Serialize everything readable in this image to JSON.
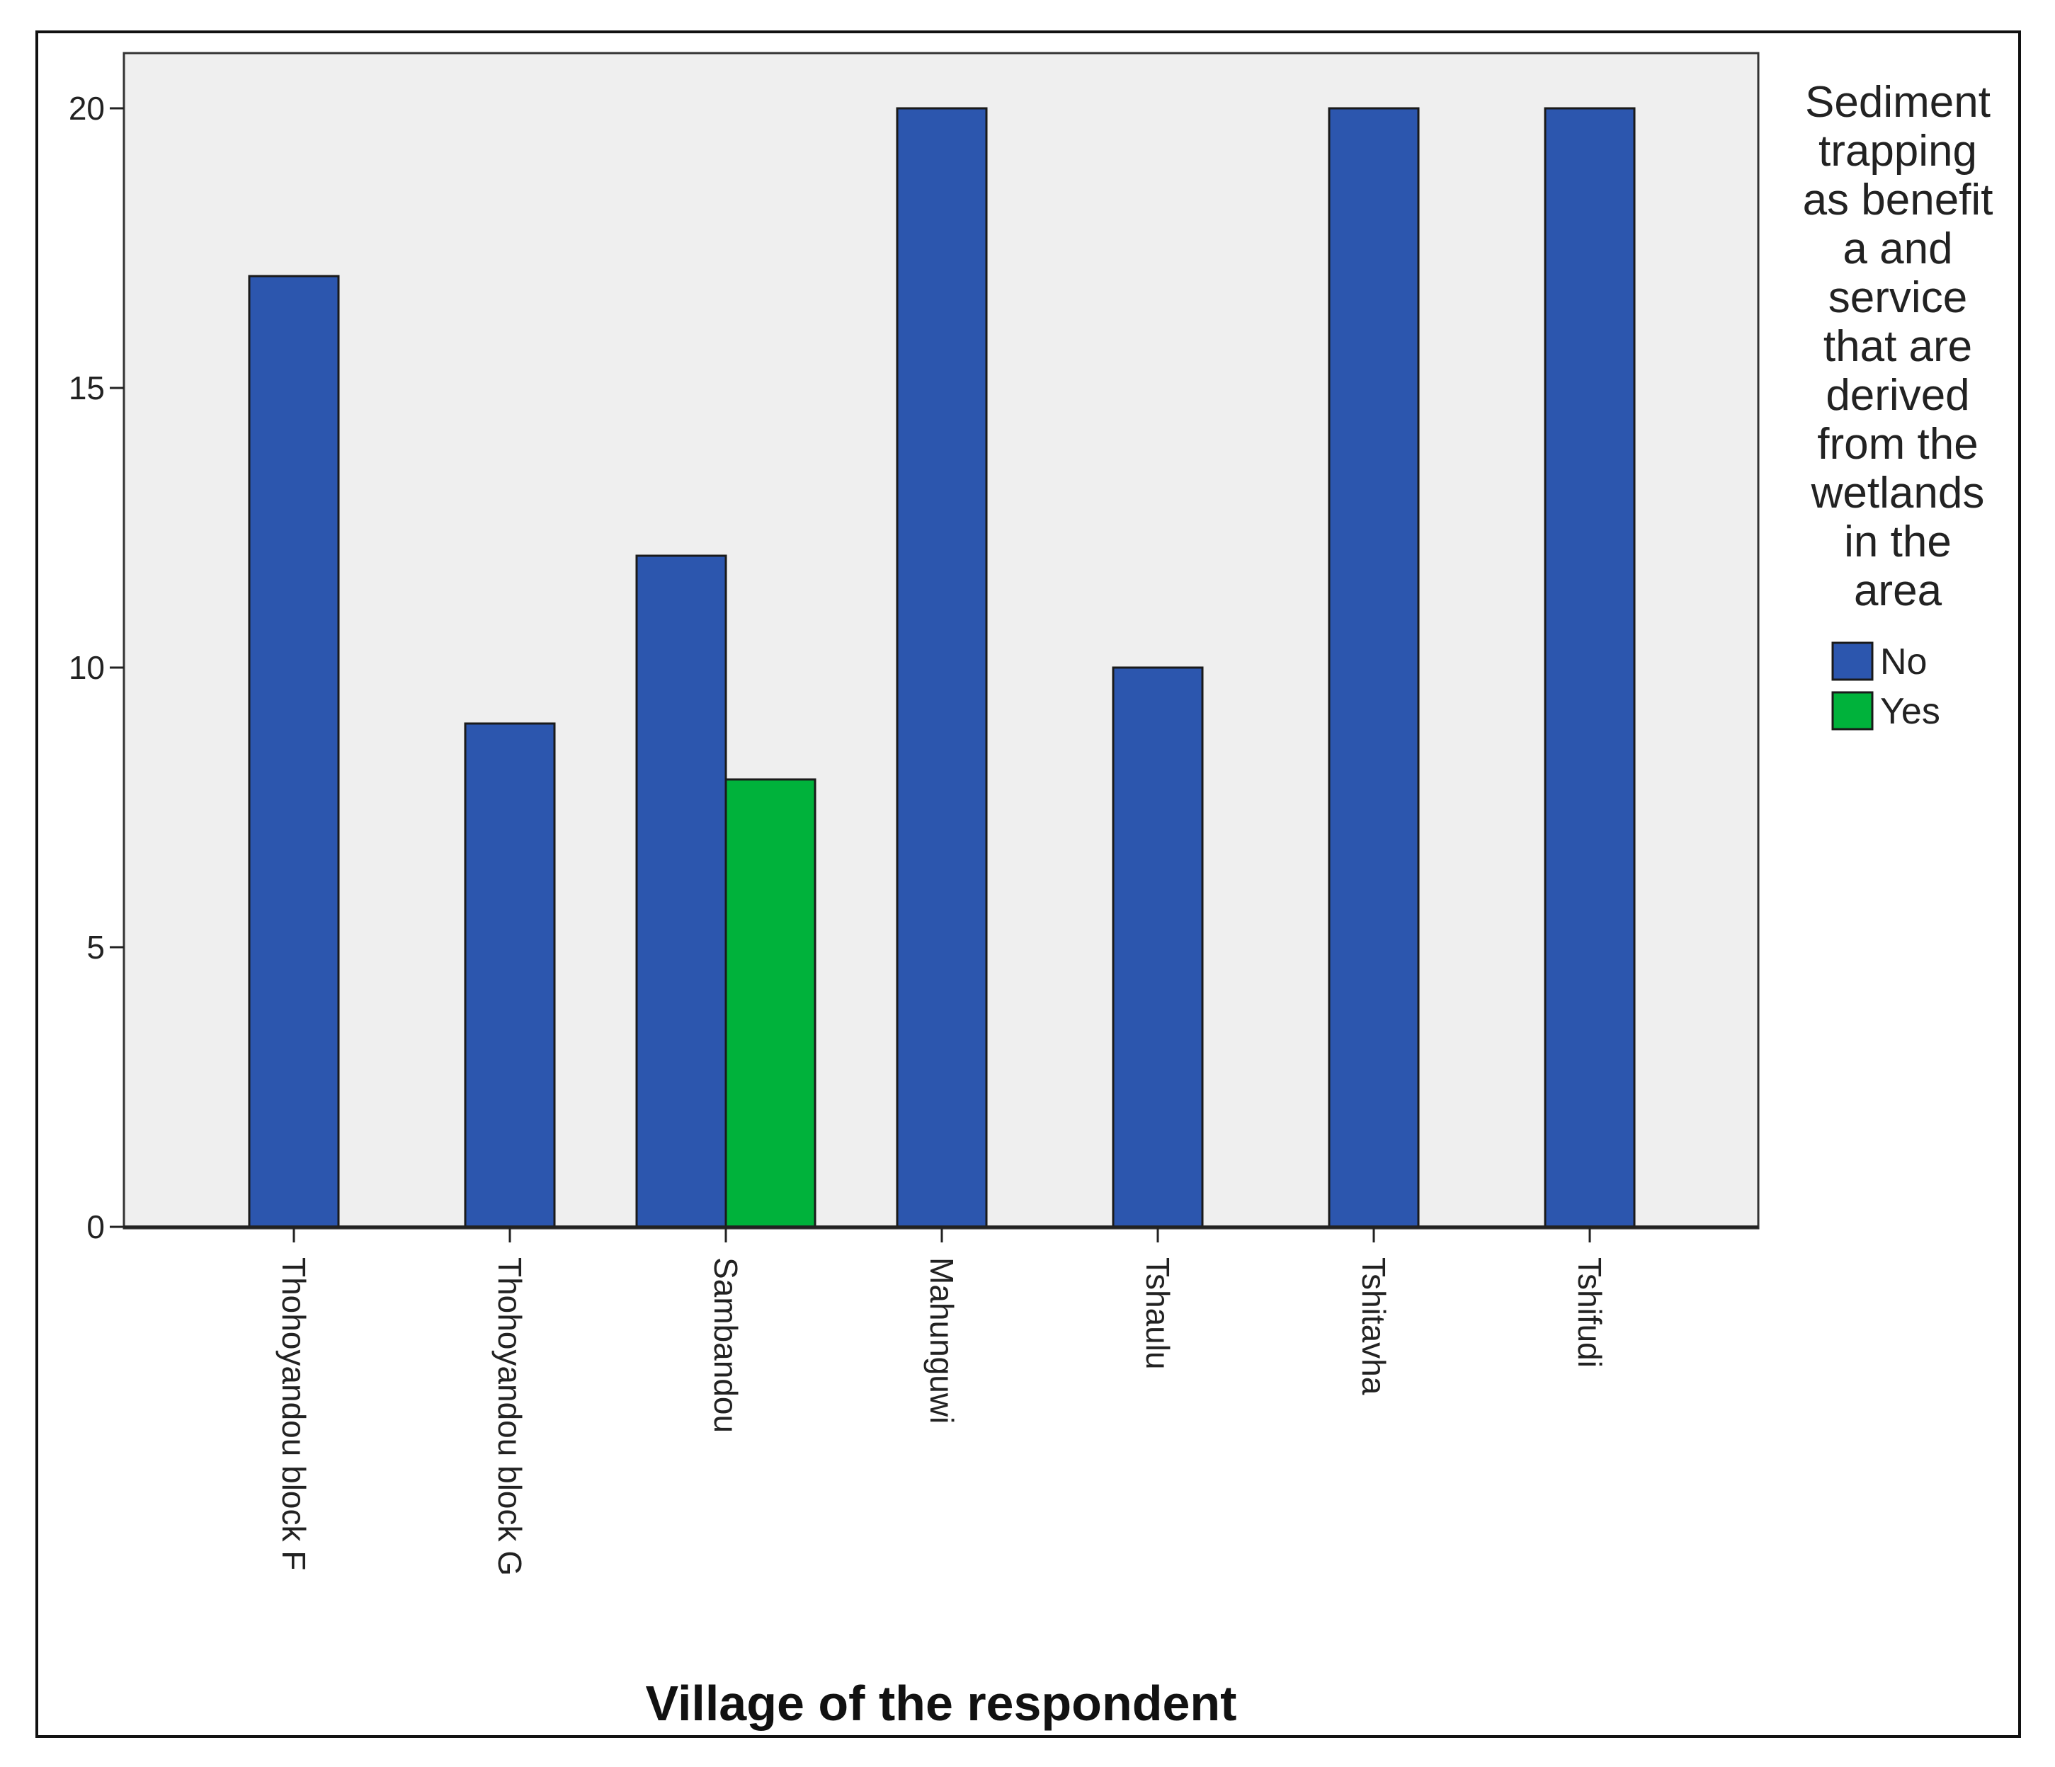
{
  "chart_data": {
    "type": "bar",
    "categories": [
      "Thohoyandou block F",
      "Thohoyandou block G",
      "Sambandou",
      "Mahunguwi",
      "Tshaulu",
      "Tshitavha",
      "Tshifudi"
    ],
    "series": [
      {
        "name": "No",
        "color": "#2c56ae",
        "values": [
          17,
          9,
          12,
          20,
          10,
          20,
          20
        ]
      },
      {
        "name": "Yes",
        "color": "#00b23b",
        "values": [
          null,
          null,
          8,
          null,
          null,
          null,
          null
        ]
      }
    ],
    "xlabel": "Village of the respondent",
    "ylabel": "",
    "ylim": [
      0,
      21
    ],
    "yticks": [
      "0",
      "5",
      "10",
      "15",
      "20"
    ],
    "legend": {
      "title_lines": [
        "Sediment",
        "trapping",
        "as benefit",
        "a and",
        "service",
        "that are",
        "derived",
        "from the",
        "wetlands",
        "in the",
        "area"
      ],
      "placement": "right"
    },
    "plot_background": "#efefef",
    "grid": false
  }
}
